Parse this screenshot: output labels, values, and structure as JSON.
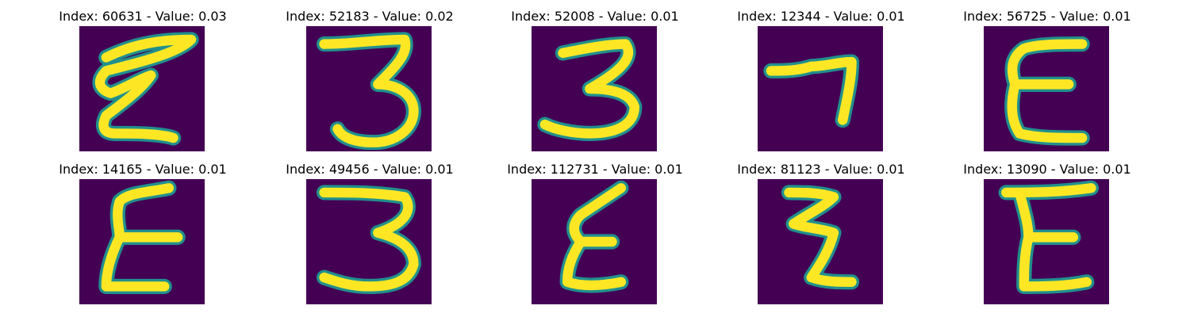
{
  "colors": {
    "background": "#440154",
    "stroke_edge": "#21908d",
    "stroke_core": "#fde725"
  },
  "panels": [
    {
      "title": "Index: 60631 - Value: 0.03"
    },
    {
      "title": "Index: 52183 - Value: 0.02"
    },
    {
      "title": "Index: 52008 - Value: 0.01"
    },
    {
      "title": "Index: 12344 - Value: 0.01"
    },
    {
      "title": "Index: 56725 - Value: 0.01"
    },
    {
      "title": "Index: 14165 - Value: 0.01"
    },
    {
      "title": "Index: 49456 - Value: 0.01"
    },
    {
      "title": "Index: 112731 - Value: 0.01"
    },
    {
      "title": "Index: 81123 - Value: 0.01"
    },
    {
      "title": "Index: 13090 - Value: 0.01"
    }
  ]
}
